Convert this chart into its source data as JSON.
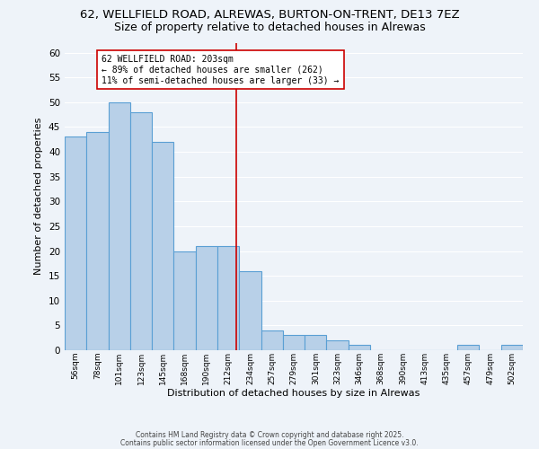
{
  "title1": "62, WELLFIELD ROAD, ALREWAS, BURTON-ON-TRENT, DE13 7EZ",
  "title2": "Size of property relative to detached houses in Alrewas",
  "xlabel": "Distribution of detached houses by size in Alrewas",
  "ylabel": "Number of detached properties",
  "bar_labels": [
    "56sqm",
    "78sqm",
    "101sqm",
    "123sqm",
    "145sqm",
    "168sqm",
    "190sqm",
    "212sqm",
    "234sqm",
    "257sqm",
    "279sqm",
    "301sqm",
    "323sqm",
    "346sqm",
    "368sqm",
    "390sqm",
    "413sqm",
    "435sqm",
    "457sqm",
    "479sqm",
    "502sqm"
  ],
  "bar_heights": [
    43,
    44,
    50,
    48,
    42,
    20,
    21,
    21,
    16,
    4,
    3,
    3,
    2,
    1,
    0,
    0,
    0,
    0,
    1,
    0,
    1
  ],
  "bar_color": "#b8d0e8",
  "bar_edge_color": "#5a9fd4",
  "ylim": [
    0,
    62
  ],
  "yticks": [
    0,
    5,
    10,
    15,
    20,
    25,
    30,
    35,
    40,
    45,
    50,
    55,
    60
  ],
  "vline_x": 7.35,
  "vline_color": "#cc0000",
  "annotation_line1": "62 WELLFIELD ROAD: 203sqm",
  "annotation_line2": "← 89% of detached houses are smaller (262)",
  "annotation_line3": "11% of semi-detached houses are larger (33) →",
  "annotation_box_color": "#ffffff",
  "annotation_box_edge": "#cc0000",
  "footer1": "Contains HM Land Registry data © Crown copyright and database right 2025.",
  "footer2": "Contains public sector information licensed under the Open Government Licence v3.0.",
  "bg_color": "#eef3f9",
  "plot_bg_color": "#eef3f9",
  "grid_color": "#ffffff",
  "title1_fontsize": 9.5,
  "title2_fontsize": 9
}
